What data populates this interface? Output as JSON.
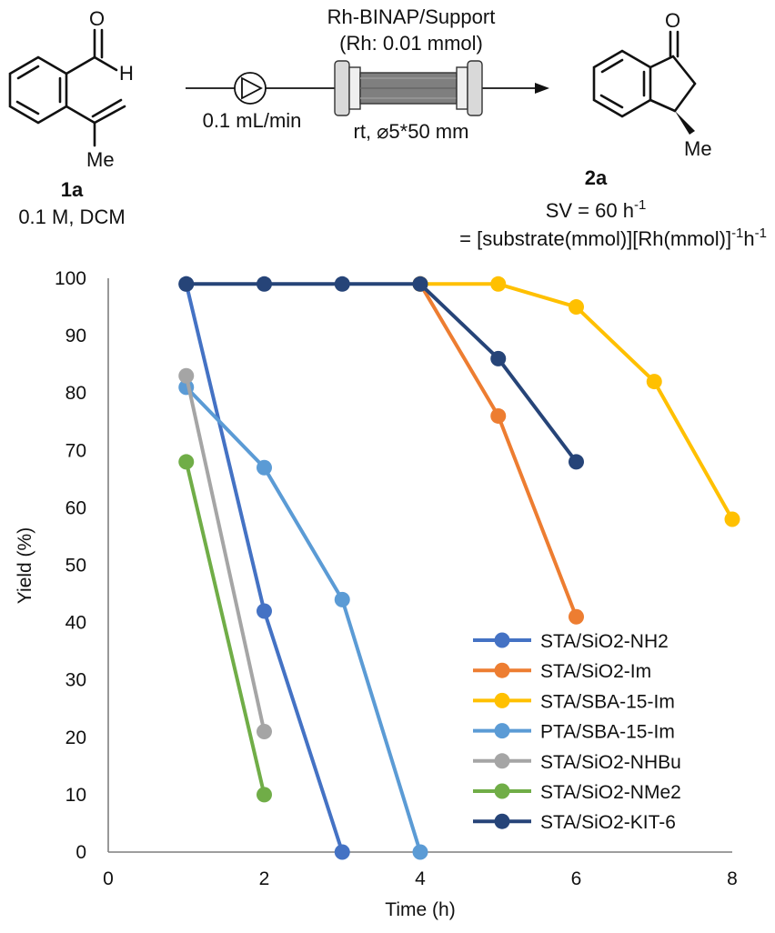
{
  "scheme": {
    "reactant_label": "1a",
    "reactant_condition": "0.1 M, DCM",
    "reactant_atom_o": "O",
    "reactant_atom_h": "H",
    "reactant_me": "Me",
    "catalyst": "Rh-BINAP/Support",
    "catalyst_amount": "(Rh: 0.01 mmol)",
    "flow_rate": "0.1 mL/min",
    "column": "rt, ⌀5*50 mm",
    "product_label": "2a",
    "product_atom_o": "O",
    "product_me": "Me",
    "sv_text": "SV = 60 h",
    "sv_sup": "-1",
    "sv_def_a": "= [substrate(mmol)][Rh(mmol)]",
    "sv_def_sup1": "-1",
    "sv_def_b": "h",
    "sv_def_sup2": "-1"
  },
  "chart_data": {
    "type": "line",
    "xlabel": "Time (h)",
    "ylabel": "Yield (%)",
    "xlim": [
      0,
      8
    ],
    "ylim": [
      0,
      100
    ],
    "xticks": [
      0,
      2,
      4,
      6,
      8
    ],
    "yticks": [
      0,
      10,
      20,
      30,
      40,
      50,
      60,
      70,
      80,
      90,
      100
    ],
    "legend_position": "bottom-right",
    "grid": false,
    "series": [
      {
        "name": "STA/SiO2-NH2",
        "color": "#4472c4",
        "points": [
          [
            1,
            99
          ],
          [
            2,
            42
          ],
          [
            3,
            0
          ]
        ]
      },
      {
        "name": "STA/SiO2-Im",
        "color": "#ed7d31",
        "points": [
          [
            4,
            99
          ],
          [
            5,
            76
          ],
          [
            6,
            41
          ]
        ]
      },
      {
        "name": "STA/SBA-15-Im",
        "color": "#ffc000",
        "points": [
          [
            4,
            99
          ],
          [
            5,
            99
          ],
          [
            6,
            95
          ],
          [
            7,
            82
          ],
          [
            8,
            58
          ]
        ]
      },
      {
        "name": "PTA/SBA-15-Im",
        "color": "#5b9bd5",
        "points": [
          [
            1,
            81
          ],
          [
            2,
            67
          ],
          [
            3,
            44
          ],
          [
            4,
            0
          ]
        ]
      },
      {
        "name": "STA/SiO2-NHBu",
        "color": "#a5a5a5",
        "points": [
          [
            1,
            83
          ],
          [
            2,
            21
          ]
        ]
      },
      {
        "name": "STA/SiO2-NMe2",
        "color": "#70ad47",
        "points": [
          [
            1,
            68
          ],
          [
            2,
            10
          ]
        ]
      },
      {
        "name": "STA/SiO2-KIT-6",
        "color": "#264478",
        "points": [
          [
            1,
            99
          ],
          [
            2,
            99
          ],
          [
            3,
            99
          ],
          [
            4,
            99
          ],
          [
            5,
            86
          ],
          [
            6,
            68
          ]
        ]
      }
    ]
  }
}
